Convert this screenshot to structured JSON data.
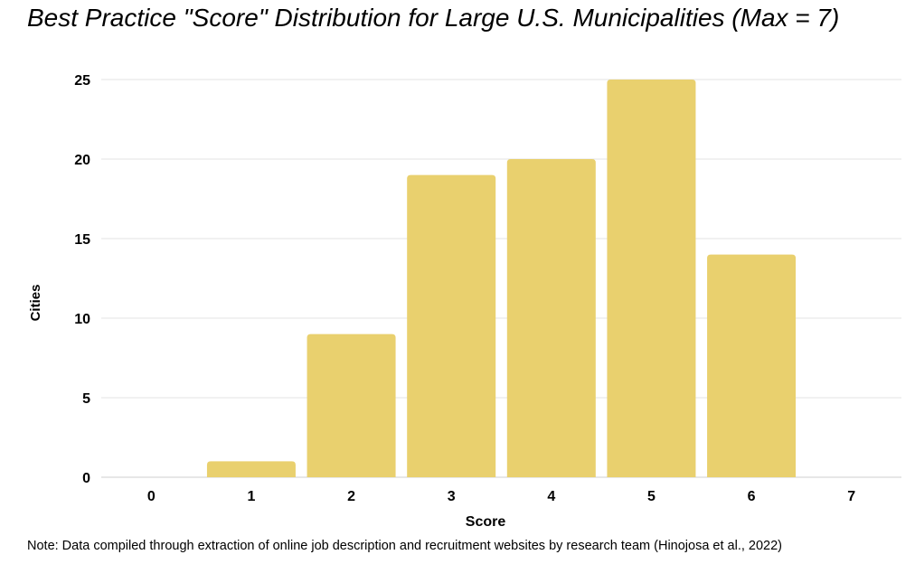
{
  "chart_data": {
    "type": "bar",
    "title": "Best Practice \"Score\" Distribution for Large U.S. Municipalities (Max = 7)",
    "xlabel": "Score",
    "ylabel": "Cities",
    "categories": [
      "0",
      "1",
      "2",
      "3",
      "4",
      "5",
      "6",
      "7"
    ],
    "values": [
      0,
      1,
      9,
      19,
      20,
      25,
      14,
      0
    ],
    "ylim": [
      0,
      25
    ],
    "yticks": [
      "0",
      "5",
      "10",
      "15",
      "20",
      "25"
    ],
    "grid": true,
    "bar_color": "#E9D06E",
    "grid_color": "#E3E3E3",
    "note": "Note: Data compiled through extraction of online job description and recruitment websites by research team (Hinojosa et al., 2022)"
  }
}
